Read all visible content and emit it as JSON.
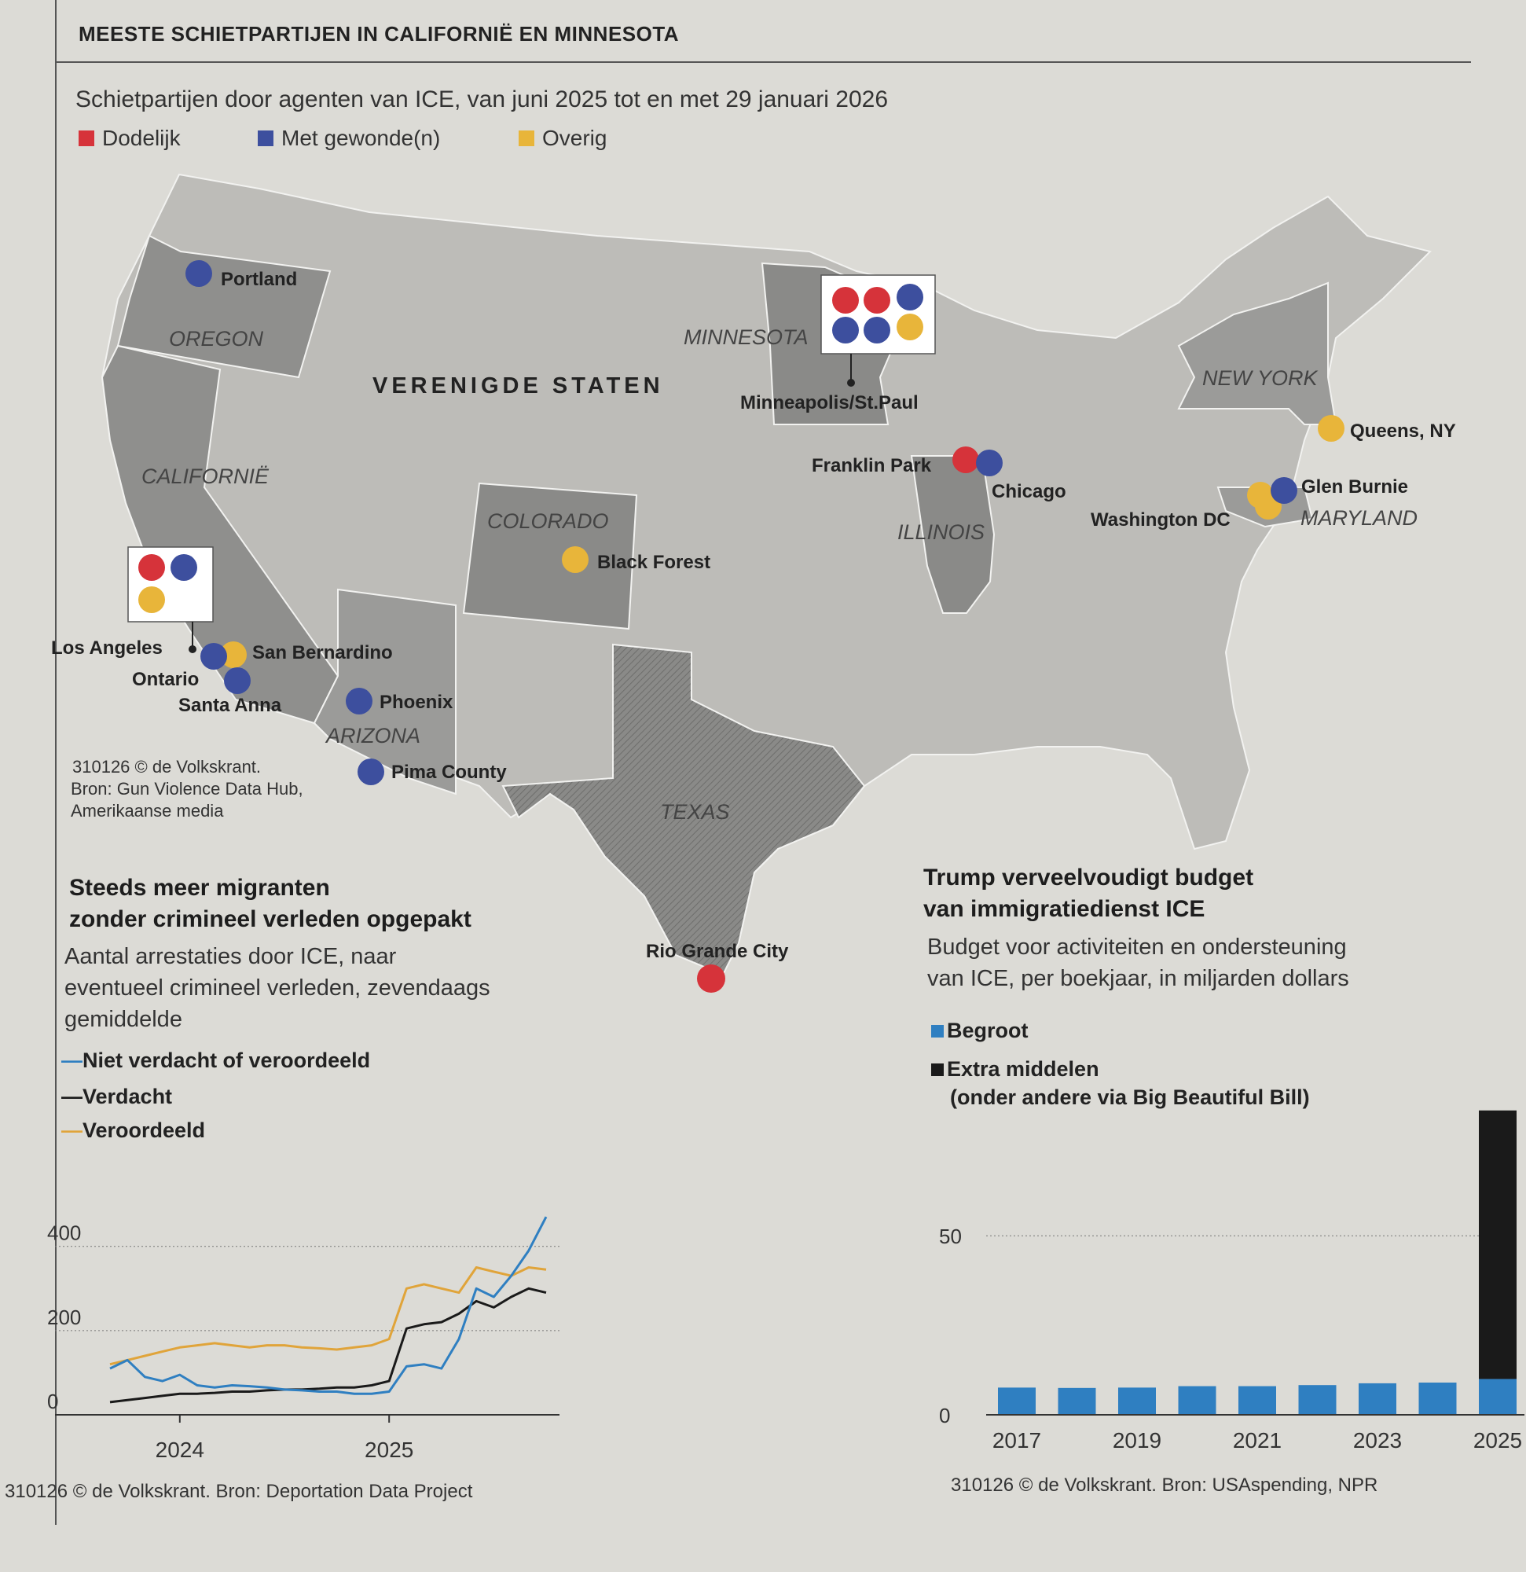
{
  "header": {
    "title": "MEESTE SCHIETPARTIJEN IN CALIFORNIË EN MINNESOTA",
    "subtitle": "Schietpartijen door agenten van ICE, van juni 2025 tot en met 29 januari 2026"
  },
  "legend": [
    {
      "label": "Dodelijk",
      "color": "#d6333a"
    },
    {
      "label": "Met gewonde(n)",
      "color": "#3d4f9e"
    },
    {
      "label": "Overig",
      "color": "#e8b53a"
    }
  ],
  "map": {
    "country_label": "VERENIGDE STATEN",
    "states": [
      "OREGON",
      "CALIFORNIË",
      "COLORADO",
      "ARIZONA",
      "TEXAS",
      "MINNESOTA",
      "ILLINOIS",
      "NEW YORK",
      "MARYLAND"
    ],
    "places": [
      {
        "name": "Portland",
        "incidents": [
          "injured"
        ]
      },
      {
        "name": "Minneapolis/St.Paul",
        "incidents": [
          "fatal",
          "fatal",
          "injured",
          "injured",
          "injured",
          "other"
        ]
      },
      {
        "name": "Franklin Park",
        "incidents": [
          "fatal"
        ]
      },
      {
        "name": "Chicago",
        "incidents": [
          "injured"
        ]
      },
      {
        "name": "Queens, NY",
        "incidents": [
          "other"
        ]
      },
      {
        "name": "Glen Burnie",
        "incidents": [
          "injured"
        ]
      },
      {
        "name": "Washington DC",
        "incidents": [
          "other"
        ]
      },
      {
        "name": "Black Forest",
        "incidents": [
          "other"
        ]
      },
      {
        "name": "Los Angeles",
        "incidents": [
          "fatal",
          "injured",
          "other"
        ]
      },
      {
        "name": "San Bernardino",
        "incidents": [
          "other"
        ]
      },
      {
        "name": "Ontario",
        "incidents": [
          "injured"
        ]
      },
      {
        "name": "Santa Anna",
        "incidents": [
          "injured"
        ]
      },
      {
        "name": "Phoenix",
        "incidents": [
          "injured"
        ]
      },
      {
        "name": "Pima County",
        "incidents": [
          "injured"
        ]
      },
      {
        "name": "Rio Grande City",
        "incidents": [
          "fatal"
        ]
      }
    ],
    "source_lines": [
      "310126 © de Volkskrant.",
      "Bron: Gun Violence Data Hub,",
      "Amerikaanse media"
    ]
  },
  "arrests": {
    "title_line1": "Steeds meer migranten",
    "title_line2": "zonder crimineel verleden opgepakt",
    "desc_line1": "Aantal arrestaties door ICE, naar",
    "desc_line2": "eventueel crimineel verleden, zevendaags",
    "desc_line3": "gemiddelde",
    "source": "310126 © de Volkskrant. Bron: Deportation Data Project"
  },
  "budget": {
    "title_line1": "Trump verveelvoudigt budget",
    "title_line2": "van immigratiedienst ICE",
    "desc_line1": "Budget voor activiteiten en ondersteuning",
    "desc_line2": "van ICE, per boekjaar, in miljarden dollars",
    "legend_extra_line2": "(onder andere via Big Beautiful Bill)",
    "source": "310126 © de Volkskrant. Bron: USAspending, NPR"
  },
  "chart_data": [
    {
      "type": "line",
      "x": [
        "2023-09",
        "2023-10",
        "2023-11",
        "2023-12",
        "2024-01",
        "2024-02",
        "2024-03",
        "2024-04",
        "2024-05",
        "2024-06",
        "2024-07",
        "2024-08",
        "2024-09",
        "2024-10",
        "2024-11",
        "2024-12",
        "2025-01",
        "2025-02",
        "2025-03",
        "2025-04",
        "2025-05",
        "2025-06",
        "2025-07",
        "2025-08",
        "2025-09",
        "2025-10"
      ],
      "x_ticks": [
        "2024",
        "2025"
      ],
      "y_ticks": [
        0,
        200,
        400
      ],
      "ylim": [
        0,
        560
      ],
      "series": [
        {
          "name": "Niet verdacht of veroordeeld",
          "color": "#2f7fc1",
          "values": [
            110,
            130,
            90,
            80,
            95,
            70,
            65,
            70,
            68,
            65,
            60,
            58,
            55,
            55,
            50,
            50,
            55,
            115,
            120,
            110,
            180,
            300,
            280,
            330,
            390,
            470
          ]
        },
        {
          "name": "Verdacht",
          "color": "#1a1a1a",
          "values": [
            30,
            35,
            40,
            45,
            50,
            50,
            52,
            55,
            55,
            58,
            60,
            60,
            62,
            65,
            65,
            70,
            80,
            205,
            215,
            220,
            240,
            270,
            255,
            280,
            300,
            290
          ]
        },
        {
          "name": "Veroordeeld",
          "color": "#e0a43a",
          "values": [
            120,
            130,
            140,
            150,
            160,
            165,
            170,
            165,
            160,
            165,
            165,
            160,
            158,
            155,
            160,
            165,
            180,
            300,
            310,
            300,
            290,
            350,
            340,
            330,
            350,
            345
          ]
        }
      ]
    },
    {
      "type": "bar",
      "categories": [
        "2017",
        "2018",
        "2019",
        "2020",
        "2021",
        "2022",
        "2023",
        "2024",
        "2025"
      ],
      "x_ticks": [
        "2017",
        "2019",
        "2021",
        "2023",
        "2025"
      ],
      "y_ticks": [
        0,
        50
      ],
      "ylim": [
        0,
        90
      ],
      "series": [
        {
          "name": "Begroot",
          "color": "#2f7fc1",
          "values": [
            7.6,
            7.5,
            7.6,
            8.0,
            8.0,
            8.3,
            8.8,
            9.0,
            10.0
          ]
        },
        {
          "name": "Extra middelen",
          "color": "#1a1a1a",
          "values": [
            0,
            0,
            0,
            0,
            0,
            0,
            0,
            0,
            75
          ]
        }
      ],
      "legend": [
        "Begroot",
        "Extra middelen"
      ]
    }
  ]
}
